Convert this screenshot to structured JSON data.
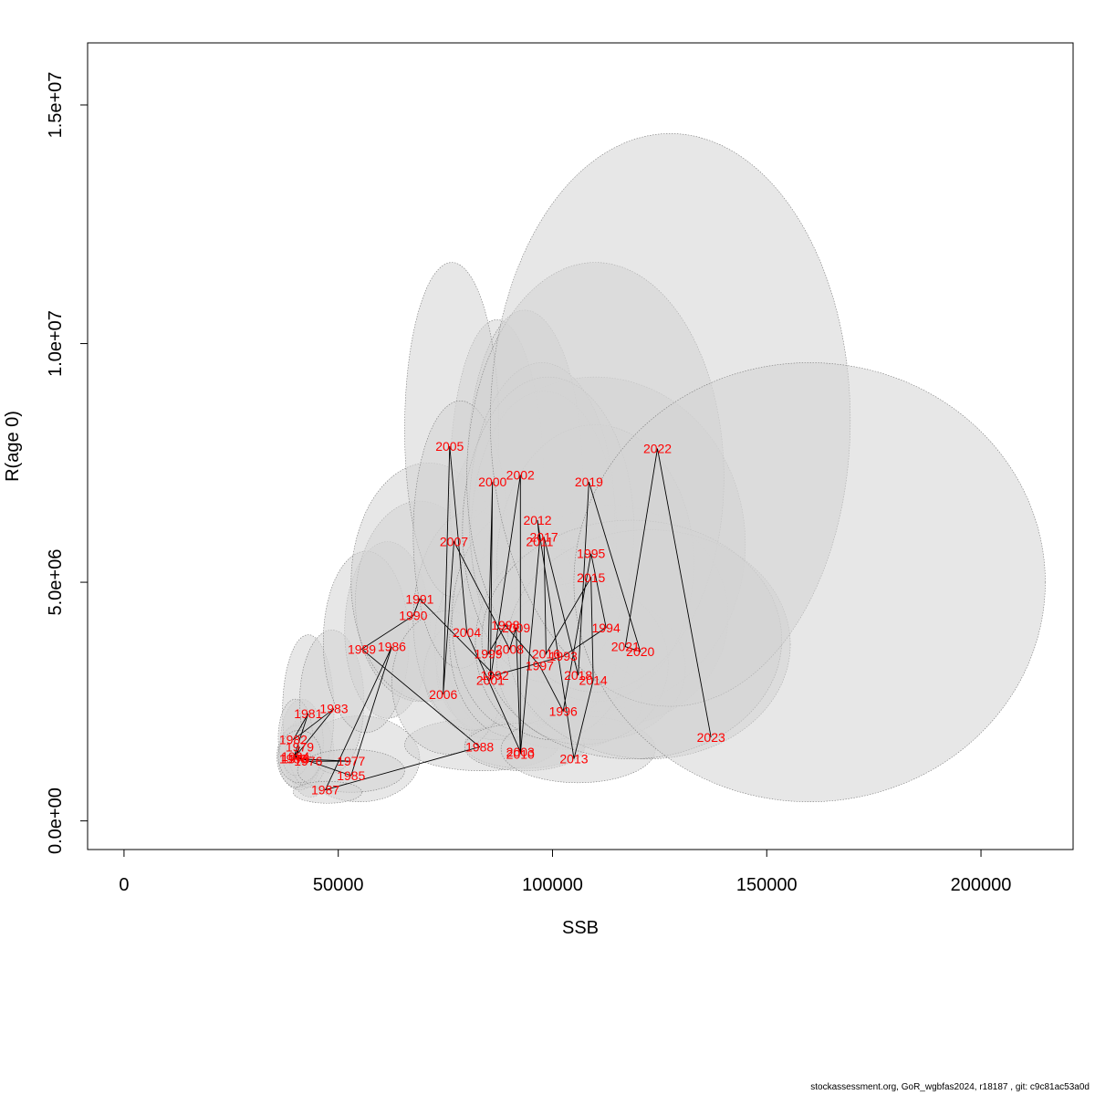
{
  "chart_data": {
    "type": "scatter",
    "title": "",
    "xlabel": "SSB",
    "ylabel": "R(age 0)",
    "xlim": [
      -8500,
      221500
    ],
    "ylim": [
      -600000,
      16300000
    ],
    "xticks": [
      {
        "value": 0,
        "label": "0"
      },
      {
        "value": 50000,
        "label": "50000"
      },
      {
        "value": 100000,
        "label": "100000"
      },
      {
        "value": 150000,
        "label": "150000"
      },
      {
        "value": 200000,
        "label": "200000"
      }
    ],
    "yticks": [
      {
        "value": 0,
        "label": "0.0e+00"
      },
      {
        "value": 5000000,
        "label": "5.0e+06"
      },
      {
        "value": 10000000,
        "label": "1.0e+07"
      },
      {
        "value": 15000000,
        "label": "1.5e+07"
      }
    ],
    "grid": false,
    "legend": "none",
    "colors": {
      "labels": "#ff0000",
      "line": "#000000",
      "ellipse_fill": "#d3d3d3",
      "ellipse_stroke": "#7a7a7a"
    },
    "points": [
      {
        "year": "1976",
        "x": 43000,
        "y": 1250000
      },
      {
        "year": "1977",
        "x": 53000,
        "y": 1250000
      },
      {
        "year": "1978",
        "x": 40000,
        "y": 1300000
      },
      {
        "year": "1979",
        "x": 41000,
        "y": 1550000
      },
      {
        "year": "1980",
        "x": 39500,
        "y": 1300000
      },
      {
        "year": "1981",
        "x": 43000,
        "y": 2250000
      },
      {
        "year": "1982",
        "x": 39500,
        "y": 1700000
      },
      {
        "year": "1983",
        "x": 49000,
        "y": 2350000
      },
      {
        "year": "1984",
        "x": 40000,
        "y": 1350000
      },
      {
        "year": "1985",
        "x": 53000,
        "y": 950000
      },
      {
        "year": "1986",
        "x": 62500,
        "y": 3650000
      },
      {
        "year": "1987",
        "x": 47000,
        "y": 650000
      },
      {
        "year": "1988",
        "x": 83000,
        "y": 1550000
      },
      {
        "year": "1989",
        "x": 55500,
        "y": 3600000
      },
      {
        "year": "1990",
        "x": 67500,
        "y": 4300000
      },
      {
        "year": "1991",
        "x": 69000,
        "y": 4650000
      },
      {
        "year": "1992",
        "x": 86500,
        "y": 3050000
      },
      {
        "year": "1993",
        "x": 102500,
        "y": 3450000
      },
      {
        "year": "1994",
        "x": 112500,
        "y": 4050000
      },
      {
        "year": "1995",
        "x": 109000,
        "y": 5600000
      },
      {
        "year": "1996",
        "x": 102500,
        "y": 2300000
      },
      {
        "year": "1997",
        "x": 97000,
        "y": 3250000
      },
      {
        "year": "1998",
        "x": 89000,
        "y": 4100000
      },
      {
        "year": "1999",
        "x": 85000,
        "y": 3500000
      },
      {
        "year": "2000",
        "x": 86000,
        "y": 7100000
      },
      {
        "year": "2001",
        "x": 85500,
        "y": 2950000
      },
      {
        "year": "2002",
        "x": 92500,
        "y": 7250000
      },
      {
        "year": "2003",
        "x": 92500,
        "y": 1450000
      },
      {
        "year": "2004",
        "x": 80000,
        "y": 3950000
      },
      {
        "year": "2005",
        "x": 76000,
        "y": 7850000
      },
      {
        "year": "2006",
        "x": 74500,
        "y": 2650000
      },
      {
        "year": "2007",
        "x": 77000,
        "y": 5850000
      },
      {
        "year": "2008",
        "x": 90000,
        "y": 3600000
      },
      {
        "year": "2009",
        "x": 91500,
        "y": 4050000
      },
      {
        "year": "2010",
        "x": 92500,
        "y": 1400000
      },
      {
        "year": "2011",
        "x": 97000,
        "y": 5850000
      },
      {
        "year": "2012",
        "x": 96500,
        "y": 6300000
      },
      {
        "year": "2013",
        "x": 105000,
        "y": 1300000
      },
      {
        "year": "2014",
        "x": 109500,
        "y": 2950000
      },
      {
        "year": "2015",
        "x": 109000,
        "y": 5100000
      },
      {
        "year": "2016",
        "x": 98500,
        "y": 3500000
      },
      {
        "year": "2017",
        "x": 98000,
        "y": 5950000
      },
      {
        "year": "2018",
        "x": 106000,
        "y": 3050000
      },
      {
        "year": "2019",
        "x": 108500,
        "y": 7100000
      },
      {
        "year": "2020",
        "x": 120500,
        "y": 3550000
      },
      {
        "year": "2021",
        "x": 117000,
        "y": 3650000
      },
      {
        "year": "2022",
        "x": 124500,
        "y": 7800000
      },
      {
        "year": "2023",
        "x": 137000,
        "y": 1750000
      }
    ],
    "ellipses": [
      {
        "year": "1976",
        "cx": 43500,
        "cy": 1400000,
        "rx": 5500,
        "ry": 900000
      },
      {
        "year": "1977",
        "cx": 55000,
        "cy": 1300000,
        "rx": 14000,
        "ry": 900000
      },
      {
        "year": "1978",
        "cx": 41000,
        "cy": 1350000,
        "rx": 5000,
        "ry": 700000
      },
      {
        "year": "1979",
        "cx": 41500,
        "cy": 1650000,
        "rx": 5000,
        "ry": 900000
      },
      {
        "year": "1980",
        "cx": 40500,
        "cy": 1350000,
        "rx": 4800,
        "ry": 650000
      },
      {
        "year": "1981",
        "cx": 43000,
        "cy": 2300000,
        "rx": 6000,
        "ry": 1600000
      },
      {
        "year": "1982",
        "cx": 40000,
        "cy": 1750000,
        "rx": 4000,
        "ry": 800000
      },
      {
        "year": "1983",
        "cx": 48500,
        "cy": 2500000,
        "rx": 7500,
        "ry": 1500000
      },
      {
        "year": "1984",
        "cx": 41000,
        "cy": 1350000,
        "rx": 5000,
        "ry": 550000
      },
      {
        "year": "1985",
        "cx": 53000,
        "cy": 1050000,
        "rx": 12500,
        "ry": 450000
      },
      {
        "year": "1986",
        "cx": 61500,
        "cy": 4000000,
        "rx": 10000,
        "ry": 1850000
      },
      {
        "year": "1987",
        "cx": 47500,
        "cy": 600000,
        "rx": 8000,
        "ry": 230000
      },
      {
        "year": "1988",
        "cx": 83500,
        "cy": 1600000,
        "rx": 18000,
        "ry": 550000
      },
      {
        "year": "1989",
        "cx": 56500,
        "cy": 3750000,
        "rx": 10000,
        "ry": 1900000
      },
      {
        "year": "1990",
        "cx": 69000,
        "cy": 4600000,
        "rx": 15000,
        "ry": 2100000
      },
      {
        "year": "1991",
        "cx": 71000,
        "cy": 5000000,
        "rx": 18000,
        "ry": 2500000
      },
      {
        "year": "1992",
        "cx": 88000,
        "cy": 3100000,
        "rx": 15000,
        "ry": 1300000
      },
      {
        "year": "1993",
        "cx": 103000,
        "cy": 3500000,
        "rx": 18000,
        "ry": 1600000
      },
      {
        "year": "1994",
        "cx": 114000,
        "cy": 4300000,
        "rx": 27000,
        "ry": 2300000
      },
      {
        "year": "1995",
        "cx": 110000,
        "cy": 5800000,
        "rx": 35000,
        "ry": 3500000
      },
      {
        "year": "1996",
        "cx": 103000,
        "cy": 2500000,
        "rx": 18000,
        "ry": 1000000
      },
      {
        "year": "1997",
        "cx": 98000,
        "cy": 3500000,
        "rx": 17000,
        "ry": 1500000
      },
      {
        "year": "1998",
        "cx": 90000,
        "cy": 4200000,
        "rx": 16000,
        "ry": 2500000
      },
      {
        "year": "1999",
        "cx": 86500,
        "cy": 3700000,
        "rx": 14000,
        "ry": 2000000
      },
      {
        "year": "2000",
        "cx": 87000,
        "cy": 7000000,
        "rx": 11000,
        "ry": 3500000
      },
      {
        "year": "2001",
        "cx": 87000,
        "cy": 3100000,
        "rx": 17000,
        "ry": 1400000
      },
      {
        "year": "2002",
        "cx": 93500,
        "cy": 7200000,
        "rx": 13500,
        "ry": 3500000
      },
      {
        "year": "2003",
        "cx": 93500,
        "cy": 1600000,
        "rx": 14000,
        "ry": 500000
      },
      {
        "year": "2004",
        "cx": 81500,
        "cy": 4200000,
        "rx": 14000,
        "ry": 2300000
      },
      {
        "year": "2005",
        "cx": 76500,
        "cy": 8200000,
        "rx": 11000,
        "ry": 3500000
      },
      {
        "year": "2006",
        "cx": 75500,
        "cy": 2900000,
        "rx": 13000,
        "ry": 1500000
      },
      {
        "year": "2007",
        "cx": 78500,
        "cy": 6000000,
        "rx": 11000,
        "ry": 2800000
      },
      {
        "year": "2008",
        "cx": 91000,
        "cy": 3750000,
        "rx": 15000,
        "ry": 2000000
      },
      {
        "year": "2009",
        "cx": 92500,
        "cy": 4200000,
        "rx": 16000,
        "ry": 2300000
      },
      {
        "year": "2010",
        "cx": 93500,
        "cy": 1550000,
        "rx": 14000,
        "ry": 500000
      },
      {
        "year": "2011",
        "cx": 98000,
        "cy": 6000000,
        "rx": 17000,
        "ry": 3000000
      },
      {
        "year": "2012",
        "cx": 97500,
        "cy": 6400000,
        "rx": 17000,
        "ry": 3200000
      },
      {
        "year": "2013",
        "cx": 106000,
        "cy": 1500000,
        "rx": 18000,
        "ry": 700000
      },
      {
        "year": "2014",
        "cx": 111000,
        "cy": 3200000,
        "rx": 20000,
        "ry": 1500000
      },
      {
        "year": "2015",
        "cx": 110000,
        "cy": 5400000,
        "rx": 23000,
        "ry": 2900000
      },
      {
        "year": "2016",
        "cx": 100000,
        "cy": 3700000,
        "rx": 18000,
        "ry": 2000000
      },
      {
        "year": "2017",
        "cx": 99000,
        "cy": 6100000,
        "rx": 20000,
        "ry": 3200000
      },
      {
        "year": "2018",
        "cx": 107000,
        "cy": 3300000,
        "rx": 20000,
        "ry": 1700000
      },
      {
        "year": "2019",
        "cx": 110000,
        "cy": 7200000,
        "rx": 30000,
        "ry": 4500000
      },
      {
        "year": "2020",
        "cx": 122500,
        "cy": 3700000,
        "rx": 33000,
        "ry": 2400000
      },
      {
        "year": "2021",
        "cx": 118500,
        "cy": 3800000,
        "rx": 35000,
        "ry": 2500000
      },
      {
        "year": "2022",
        "cx": 127500,
        "cy": 8400000,
        "rx": 42000,
        "ry": 6000000
      },
      {
        "year": "2023",
        "cx": 160000,
        "cy": 5000000,
        "rx": 55000,
        "ry": 4600000
      }
    ]
  },
  "footer": "stockassessment.org, GoR_wgbfas2024, r18187 , git: c9c81ac53a0d"
}
